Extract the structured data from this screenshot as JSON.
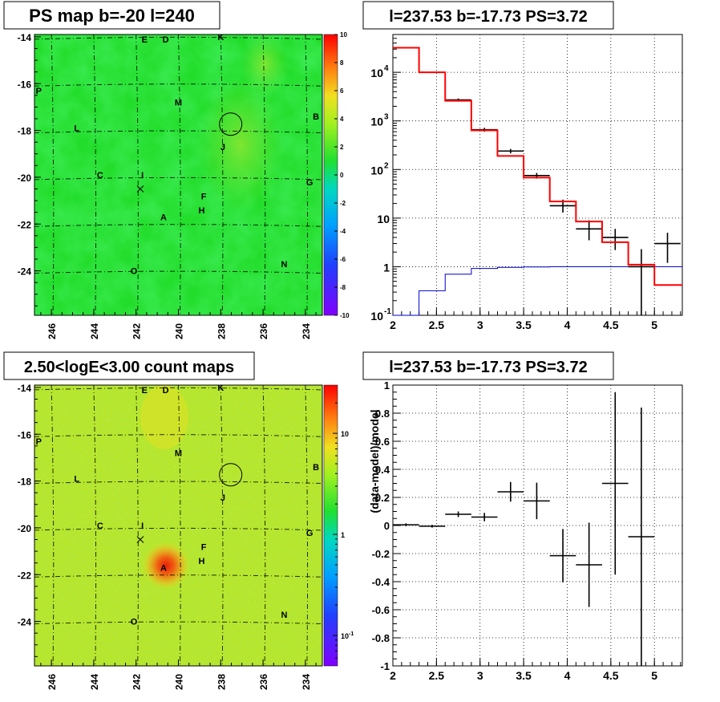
{
  "panels": {
    "ps_map": {
      "title": "PS map b=-20 l=240",
      "x_ticks": [
        "246",
        "244",
        "242",
        "240",
        "238",
        "236",
        "234"
      ],
      "y_ticks": [
        "-14",
        "-16",
        "-18",
        "-20",
        "-22",
        "-24"
      ],
      "colorbar_ticks": [
        "10",
        "8",
        "6",
        "4",
        "2",
        "0",
        "-2",
        "-4",
        "-6",
        "-8",
        "-10"
      ],
      "base_color": "#22dd2a"
    },
    "count_map": {
      "title": "2.50<logE<3.00 count maps",
      "x_ticks": [
        "246",
        "244",
        "242",
        "240",
        "238",
        "236",
        "234"
      ],
      "y_ticks": [
        "-14",
        "-16",
        "-18",
        "-20",
        "-22",
        "-24"
      ],
      "colorbar_ticks": [
        "10",
        "1",
        "10-1"
      ]
    },
    "spectrum": {
      "title": "l=237.53 b=-17.73 PS=3.72",
      "x_ticks": [
        "2",
        "2.5",
        "3",
        "3.5",
        "4",
        "4.5",
        "5"
      ],
      "y_ticks": [
        "10^4",
        "10^3",
        "10^2",
        "10",
        "1",
        "10^-1"
      ]
    },
    "residual": {
      "title": "l=237.53 b=-17.73 PS=3.72",
      "ylabel": "(data-model)/model",
      "x_ticks": [
        "2",
        "2.5",
        "3",
        "3.5",
        "4",
        "4.5",
        "5"
      ],
      "y_ticks": [
        "1",
        "0.8",
        "0.6",
        "0.4",
        "0.2",
        "0",
        "-0.2",
        "-0.4",
        "-0.6",
        "-0.8",
        "-1"
      ]
    }
  },
  "sources": [
    {
      "name": "E",
      "l": 241.6,
      "b": -14.1
    },
    {
      "name": "D",
      "l": 240.6,
      "b": -14.1
    },
    {
      "name": "K",
      "l": 238.0,
      "b": -14.0
    },
    {
      "name": "P",
      "l": 246.6,
      "b": -16.3
    },
    {
      "name": "M",
      "l": 240.0,
      "b": -16.8
    },
    {
      "name": "B",
      "l": 233.5,
      "b": -17.4
    },
    {
      "name": "L",
      "l": 244.8,
      "b": -17.9
    },
    {
      "name": "J",
      "l": 237.9,
      "b": -18.7
    },
    {
      "name": "C",
      "l": 243.7,
      "b": -19.9
    },
    {
      "name": "I",
      "l": 241.7,
      "b": -19.9
    },
    {
      "name": "G",
      "l": 233.8,
      "b": -20.2
    },
    {
      "name": "F",
      "l": 238.8,
      "b": -20.8
    },
    {
      "name": "H",
      "l": 238.9,
      "b": -21.4
    },
    {
      "name": "A",
      "l": 240.7,
      "b": -21.7
    },
    {
      "name": "N",
      "l": 235.0,
      "b": -23.7
    },
    {
      "name": "O",
      "l": 242.1,
      "b": -24.0
    }
  ],
  "markers": {
    "circle": {
      "l": 237.53,
      "b": -17.73
    },
    "cross": {
      "l": 241.8,
      "b": -20.5
    }
  },
  "chart_data": [
    {
      "type": "heatmap",
      "title": "PS map b=-20 l=240",
      "xlim": [
        246.8,
        233.2
      ],
      "ylim": [
        -25.9,
        -13.9
      ],
      "z_range": [
        -10,
        10
      ],
      "note": "PS values mostly near 0-2 with a slightly elevated region near l=237-238, b=-17..-19"
    },
    {
      "type": "heatmap",
      "title": "2.50<logE<3.00 count maps",
      "xlim": [
        246.8,
        233.2
      ],
      "ylim": [
        -25.9,
        -13.9
      ],
      "z_scale": "log",
      "z_range": [
        0.05,
        30
      ],
      "note": "bright source at A (l~240.7, b~-21.7)"
    },
    {
      "type": "line",
      "title": "l=237.53 b=-17.73 PS=3.72",
      "xlim": [
        2.0,
        5.32
      ],
      "ylim": [
        0.1,
        60000
      ],
      "y_scale": "log",
      "series": [
        {
          "bins": [
            2.0,
            2.3,
            2.6,
            2.9,
            3.2,
            3.5,
            3.8,
            4.1,
            4.4,
            4.7,
            5.0,
            5.32
          ],
          "values": [
            32000,
            10000,
            2600,
            640,
            190,
            68,
            22,
            8.5,
            3.2,
            1.1,
            0.42
          ]
        },
        {
          "bins": [
            2.0,
            2.3,
            2.6,
            2.9,
            3.2,
            3.5,
            3.8,
            4.1,
            4.4,
            4.7,
            5.0,
            5.32
          ],
          "values": [
            0.1,
            0.32,
            0.7,
            0.92,
            0.97,
            0.99,
            1.0,
            1.0,
            1.0,
            1.0,
            1.0
          ]
        },
        {
          "x": [
            2.75,
            3.05,
            3.35,
            3.65,
            3.95,
            4.25,
            4.55,
            4.85,
            5.15
          ],
          "y": [
            2700,
            660,
            240,
            75,
            18,
            6,
            4,
            1,
            3
          ],
          "y_low": [
            2500,
            600,
            215,
            65,
            13,
            3.5,
            2.2,
            0.05,
            1.2
          ],
          "y_high": [
            2900,
            720,
            265,
            85,
            24,
            9,
            6,
            2.3,
            5
          ],
          "x_halfwidth": 0.15
        }
      ]
    },
    {
      "type": "scatter",
      "title": "l=237.53 b=-17.73 PS=3.72",
      "ylabel": "(data-model)/model",
      "xlim": [
        2.0,
        5.32
      ],
      "ylim": [
        -1,
        1
      ],
      "series": [
        {
          "x": [
            2.15,
            2.45,
            2.75,
            3.05,
            3.35,
            3.65,
            3.95,
            4.25,
            4.55,
            4.85
          ],
          "y": [
            0.005,
            -0.005,
            0.08,
            0.06,
            0.24,
            0.175,
            -0.215,
            -0.28,
            0.3,
            -0.08
          ],
          "y_err": [
            0.01,
            0.01,
            0.02,
            0.03,
            0.07,
            0.13,
            0.19,
            0.3,
            0.65,
            0.92
          ],
          "x_halfwidth": 0.15
        }
      ]
    }
  ]
}
